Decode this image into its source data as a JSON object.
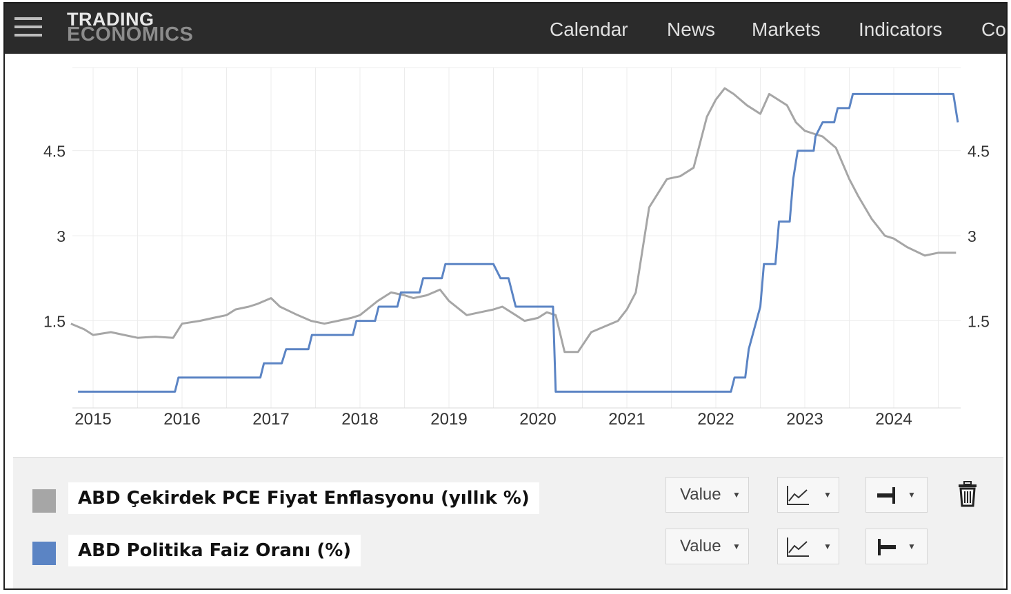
{
  "header": {
    "logo_line1": "TRADING",
    "logo_line2": "ECONOMICS",
    "nav": [
      "Calendar",
      "News",
      "Markets",
      "Indicators",
      "Co"
    ]
  },
  "chart_data": {
    "type": "line",
    "x_ticks": [
      "2015",
      "2016",
      "2017",
      "2018",
      "2019",
      "2020",
      "2021",
      "2022",
      "2023",
      "2024"
    ],
    "y_ticks_left": [
      "4.5",
      "3",
      "1.5"
    ],
    "y_ticks_right": [
      "4.5",
      "3",
      "1.5"
    ],
    "ylim": [
      0,
      6.15
    ],
    "grid": true,
    "series": [
      {
        "name": "ABD Çekirdek PCE Fiyat Enflasyonu (yıllık %)",
        "color": "#a6a6a6",
        "points": [
          [
            2014.75,
            1.45
          ],
          [
            2014.9,
            1.35
          ],
          [
            2015.0,
            1.25
          ],
          [
            2015.2,
            1.3
          ],
          [
            2015.35,
            1.25
          ],
          [
            2015.5,
            1.2
          ],
          [
            2015.7,
            1.22
          ],
          [
            2015.9,
            1.2
          ],
          [
            2016.0,
            1.45
          ],
          [
            2016.2,
            1.5
          ],
          [
            2016.35,
            1.55
          ],
          [
            2016.5,
            1.6
          ],
          [
            2016.6,
            1.7
          ],
          [
            2016.75,
            1.75
          ],
          [
            2016.85,
            1.8
          ],
          [
            2017.0,
            1.9
          ],
          [
            2017.1,
            1.75
          ],
          [
            2017.3,
            1.6
          ],
          [
            2017.45,
            1.5
          ],
          [
            2017.6,
            1.45
          ],
          [
            2017.75,
            1.5
          ],
          [
            2017.9,
            1.55
          ],
          [
            2018.0,
            1.6
          ],
          [
            2018.2,
            1.85
          ],
          [
            2018.35,
            2.0
          ],
          [
            2018.5,
            1.95
          ],
          [
            2018.6,
            1.9
          ],
          [
            2018.75,
            1.95
          ],
          [
            2018.9,
            2.05
          ],
          [
            2019.0,
            1.85
          ],
          [
            2019.2,
            1.6
          ],
          [
            2019.35,
            1.65
          ],
          [
            2019.5,
            1.7
          ],
          [
            2019.6,
            1.75
          ],
          [
            2019.75,
            1.6
          ],
          [
            2019.85,
            1.5
          ],
          [
            2020.0,
            1.55
          ],
          [
            2020.1,
            1.65
          ],
          [
            2020.2,
            1.6
          ],
          [
            2020.3,
            0.95
          ],
          [
            2020.45,
            0.95
          ],
          [
            2020.6,
            1.3
          ],
          [
            2020.75,
            1.4
          ],
          [
            2020.9,
            1.5
          ],
          [
            2021.0,
            1.7
          ],
          [
            2021.1,
            2.0
          ],
          [
            2021.25,
            3.5
          ],
          [
            2021.45,
            4.0
          ],
          [
            2021.6,
            4.05
          ],
          [
            2021.75,
            4.2
          ],
          [
            2021.9,
            5.1
          ],
          [
            2022.0,
            5.4
          ],
          [
            2022.1,
            5.6
          ],
          [
            2022.2,
            5.5
          ],
          [
            2022.35,
            5.3
          ],
          [
            2022.5,
            5.15
          ],
          [
            2022.6,
            5.5
          ],
          [
            2022.8,
            5.3
          ],
          [
            2022.9,
            5.0
          ],
          [
            2023.0,
            4.85
          ],
          [
            2023.1,
            4.8
          ],
          [
            2023.2,
            4.75
          ],
          [
            2023.35,
            4.55
          ],
          [
            2023.5,
            4.0
          ],
          [
            2023.6,
            3.7
          ],
          [
            2023.75,
            3.3
          ],
          [
            2023.9,
            3.0
          ],
          [
            2024.0,
            2.95
          ],
          [
            2024.15,
            2.8
          ],
          [
            2024.35,
            2.65
          ],
          [
            2024.5,
            2.7
          ],
          [
            2024.7,
            2.7
          ]
        ]
      },
      {
        "name": "ABD Politika Faiz Oranı (%)",
        "color": "#5b84c4",
        "points": [
          [
            2014.83,
            0.25
          ],
          [
            2015.92,
            0.25
          ],
          [
            2015.96,
            0.5
          ],
          [
            2016.88,
            0.5
          ],
          [
            2016.92,
            0.75
          ],
          [
            2017.12,
            0.75
          ],
          [
            2017.17,
            1.0
          ],
          [
            2017.42,
            1.0
          ],
          [
            2017.46,
            1.25
          ],
          [
            2017.92,
            1.25
          ],
          [
            2017.96,
            1.5
          ],
          [
            2018.17,
            1.5
          ],
          [
            2018.21,
            1.75
          ],
          [
            2018.42,
            1.75
          ],
          [
            2018.46,
            2.0
          ],
          [
            2018.67,
            2.0
          ],
          [
            2018.71,
            2.25
          ],
          [
            2018.92,
            2.25
          ],
          [
            2018.96,
            2.5
          ],
          [
            2019.5,
            2.5
          ],
          [
            2019.58,
            2.25
          ],
          [
            2019.67,
            2.25
          ],
          [
            2019.75,
            1.75
          ],
          [
            2020.17,
            1.75
          ],
          [
            2020.2,
            0.25
          ],
          [
            2022.17,
            0.25
          ],
          [
            2022.21,
            0.5
          ],
          [
            2022.33,
            0.5
          ],
          [
            2022.37,
            1.0
          ],
          [
            2022.5,
            1.75
          ],
          [
            2022.54,
            2.5
          ],
          [
            2022.67,
            2.5
          ],
          [
            2022.71,
            3.25
          ],
          [
            2022.83,
            3.25
          ],
          [
            2022.87,
            4.0
          ],
          [
            2022.92,
            4.5
          ],
          [
            2023.1,
            4.5
          ],
          [
            2023.12,
            4.75
          ],
          [
            2023.2,
            5.0
          ],
          [
            2023.33,
            5.0
          ],
          [
            2023.37,
            5.25
          ],
          [
            2023.5,
            5.25
          ],
          [
            2023.54,
            5.5
          ],
          [
            2024.67,
            5.5
          ],
          [
            2024.72,
            5.0
          ]
        ]
      }
    ]
  },
  "legend": {
    "series": [
      {
        "label": "ABD Çekirdek PCE Fiyat Enflasyonu (yıllık %)",
        "color": "#a6a6a6",
        "value_label": "Value",
        "chart_type_icon": "line-chart-icon",
        "axis_icon": "axis-right-icon"
      },
      {
        "label": "ABD Politika Faiz Oranı (%)",
        "color": "#5b84c4",
        "value_label": "Value",
        "chart_type_icon": "line-chart-icon",
        "axis_icon": "axis-left-icon"
      }
    ],
    "trash_icon": "trash-icon"
  }
}
